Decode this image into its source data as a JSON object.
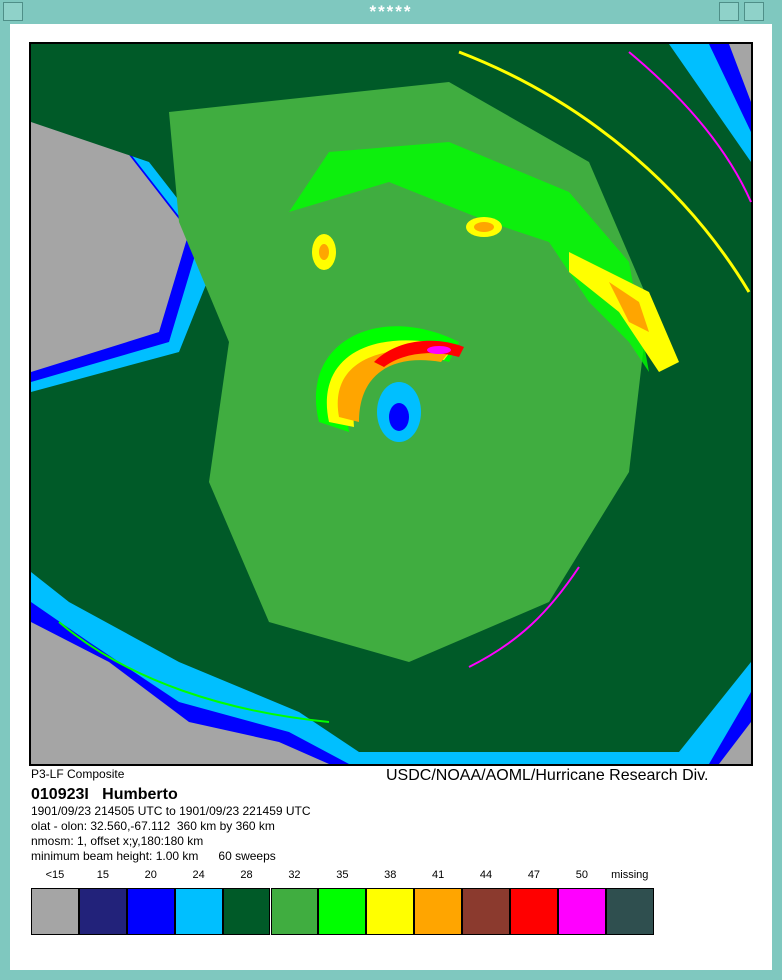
{
  "window": {
    "title": "*****"
  },
  "image": {
    "caption_left": "P3-LF Composite",
    "caption_right": "USDC/NOAA/AOML/Hurricane Research Div."
  },
  "info": {
    "storm": "010923I   Humberto",
    "lines": [
      "1901/09/23 214505 UTC to 1901/09/23 221459 UTC",
      "olat - olon: 32.560,-67.112  360 km by 360 km",
      "nmosm: 1, offset x;y,180:180 km",
      "minimum beam height: 1.00 km      60 sweeps"
    ]
  },
  "legend": [
    {
      "label": "<15",
      "color": "#a5a5a5"
    },
    {
      "label": "15",
      "color": "#22227a"
    },
    {
      "label": "20",
      "color": "#0000ff"
    },
    {
      "label": "24",
      "color": "#00bfff"
    },
    {
      "label": "28",
      "color": "#005a28"
    },
    {
      "label": "32",
      "color": "#40ad40"
    },
    {
      "label": "35",
      "color": "#00ff00"
    },
    {
      "label": "38",
      "color": "#ffff00"
    },
    {
      "label": "41",
      "color": "#ffa500"
    },
    {
      "label": "44",
      "color": "#8b3a2e"
    },
    {
      "label": "47",
      "color": "#ff0000"
    },
    {
      "label": "50",
      "color": "#ff00ff"
    },
    {
      "label": "missing",
      "color": "#2f4f4f"
    }
  ]
}
